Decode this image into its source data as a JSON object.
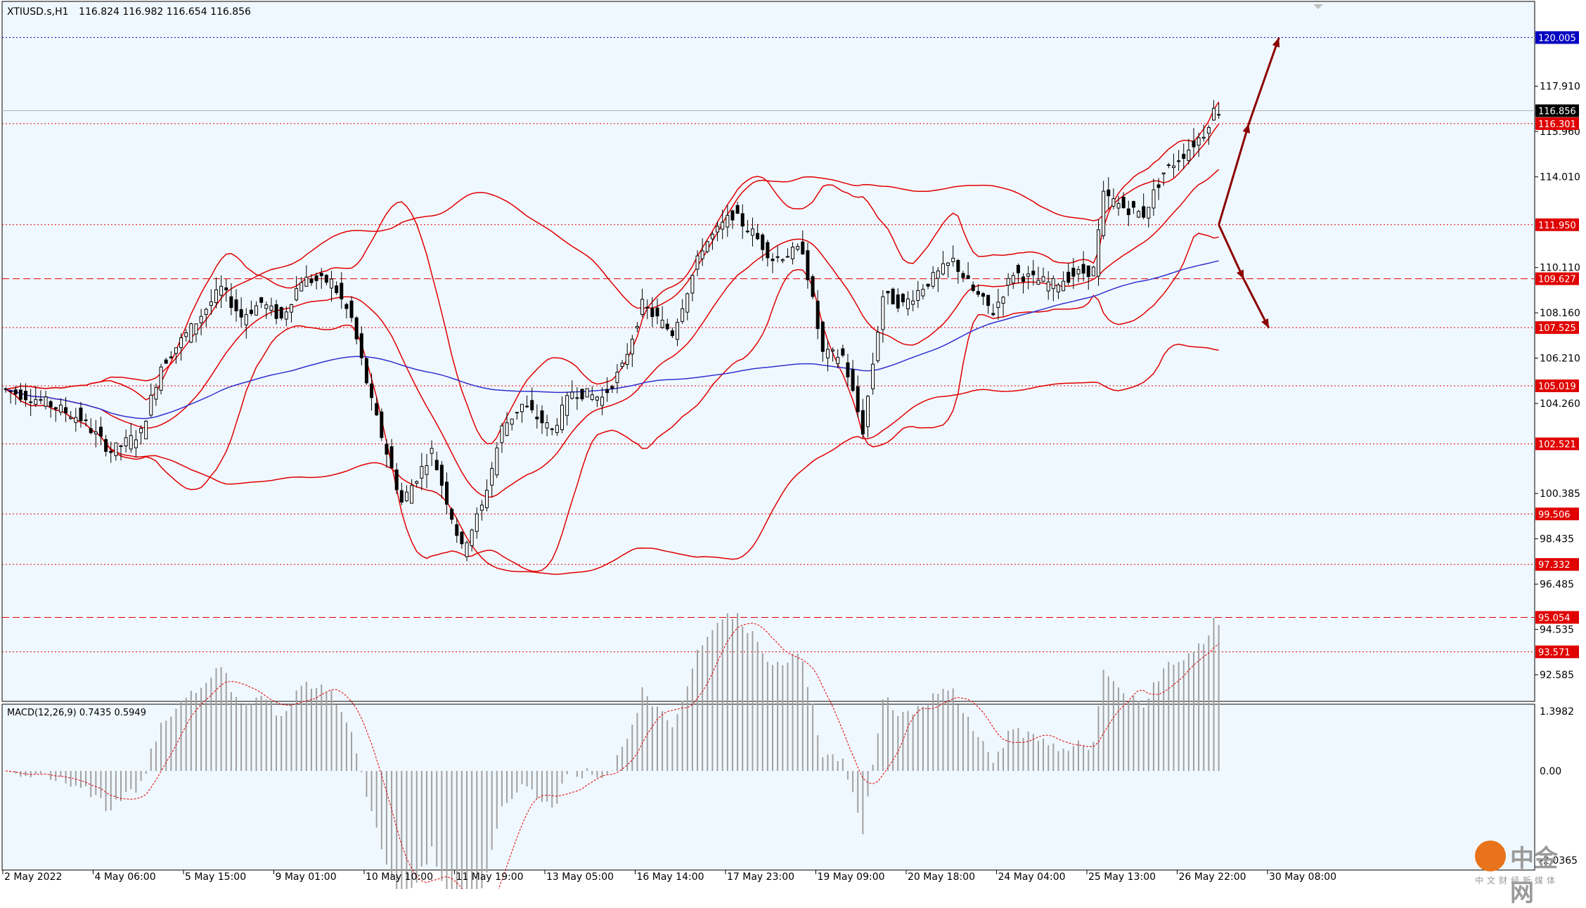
{
  "header": {
    "symbol": "XTIUSD.s,H1",
    "ohlc": "116.824 116.982 116.654 116.856"
  },
  "indicator": {
    "label": "MACD(12,26,9) 0.7435 0.5949",
    "scale_labels": [
      "1.3982",
      "0.00",
      "-2.0365"
    ]
  },
  "watermark": {
    "text": "中金网",
    "subtitle": "中文财经新媒体"
  },
  "colors": {
    "background": "#f0f8ff",
    "candle": "#000000",
    "bollinger": "#e00000",
    "ma": "#3030d0",
    "level": "#e00000",
    "blue_level": "#0000c0",
    "arrow": "#8b0000",
    "macd_hist": "#a0a0a0",
    "macd_signal": "#e00000"
  },
  "chart_data": {
    "type": "line",
    "title": "XTIUSD.s,H1",
    "xlabel": "",
    "ylabel": "",
    "ylim": [
      91.5,
      121.5
    ],
    "y_ticks": [
      "117.910",
      "115.960",
      "114.010",
      "110.110",
      "108.160",
      "106.210",
      "104.260",
      "100.385",
      "98.435",
      "96.485",
      "94.535",
      "92.585"
    ],
    "x_ticks": [
      "2 May 2022",
      "4 May 06:00",
      "5 May 15:00",
      "9 May 01:00",
      "10 May 10:00",
      "11 May 19:00",
      "13 May 05:00",
      "16 May 14:00",
      "17 May 23:00",
      "19 May 09:00",
      "20 May 18:00",
      "24 May 04:00",
      "25 May 13:00",
      "26 May 22:00",
      "30 May 08:00"
    ],
    "current_price": {
      "value": 116.856,
      "label": "116.856"
    },
    "levels": [
      {
        "value": 120.005,
        "label": "120.005",
        "style": "dotted",
        "color": "blue"
      },
      {
        "value": 116.301,
        "label": "116.301",
        "style": "dotted",
        "color": "red"
      },
      {
        "value": 111.95,
        "label": "111.950",
        "style": "dotted",
        "color": "red"
      },
      {
        "value": 109.627,
        "label": "109.627",
        "style": "dashed",
        "color": "red"
      },
      {
        "value": 107.525,
        "label": "107.525",
        "style": "dotted",
        "color": "red"
      },
      {
        "value": 105.019,
        "label": "105.019",
        "style": "dotted",
        "color": "red"
      },
      {
        "value": 102.521,
        "label": "102.521",
        "style": "dotted",
        "color": "red"
      },
      {
        "value": 99.506,
        "label": "99.506",
        "style": "dotted",
        "color": "red"
      },
      {
        "value": 97.332,
        "label": "97.332",
        "style": "dotted",
        "color": "red"
      },
      {
        "value": 95.054,
        "label": "95.054",
        "style": "dashed",
        "color": "red"
      },
      {
        "value": 93.571,
        "label": "93.571",
        "style": "dotted",
        "color": "red"
      }
    ],
    "price_path": [
      [
        0,
        104.9
      ],
      [
        4,
        104.4
      ],
      [
        8,
        103.6
      ],
      [
        11,
        102.2
      ],
      [
        14,
        103.0
      ],
      [
        16,
        105.9
      ],
      [
        19,
        107.5
      ],
      [
        22,
        109.2
      ],
      [
        24,
        108.0
      ],
      [
        26,
        108.6
      ],
      [
        28,
        107.9
      ],
      [
        30,
        109.6
      ],
      [
        33,
        109.5
      ],
      [
        35,
        107.9
      ],
      [
        37,
        104.3
      ],
      [
        40,
        100.0
      ],
      [
        43,
        102.2
      ],
      [
        46,
        98.0
      ],
      [
        48,
        99.8
      ],
      [
        50,
        103.2
      ],
      [
        52,
        104.2
      ],
      [
        55,
        103.1
      ],
      [
        57,
        104.8
      ],
      [
        60,
        104.5
      ],
      [
        62,
        105.8
      ],
      [
        64,
        108.5
      ],
      [
        67,
        107.3
      ],
      [
        70,
        111.0
      ],
      [
        73,
        112.4
      ],
      [
        75,
        111.6
      ],
      [
        77,
        110.5
      ],
      [
        80,
        110.9
      ],
      [
        82,
        106.4
      ],
      [
        84,
        106.3
      ],
      [
        86,
        103.1
      ],
      [
        88,
        108.9
      ],
      [
        90,
        108.5
      ],
      [
        92,
        109.3
      ],
      [
        95,
        110.4
      ],
      [
        97,
        109.1
      ],
      [
        99,
        108.2
      ],
      [
        101,
        109.9
      ],
      [
        103,
        109.6
      ],
      [
        105,
        109.4
      ],
      [
        107,
        109.8
      ],
      [
        109,
        110.0
      ],
      [
        110,
        113.2
      ],
      [
        112,
        112.7
      ],
      [
        114,
        112.4
      ],
      [
        116,
        114.2
      ],
      [
        118,
        115.0
      ],
      [
        120,
        115.9
      ],
      [
        121,
        116.856
      ]
    ],
    "resistance_path": [
      {
        "x": 121,
        "y": 111.95
      },
      {
        "x": 124,
        "y": 116.3
      },
      {
        "x": 127,
        "y": 120.0
      }
    ],
    "support_path": [
      {
        "x": 121,
        "y": 111.95
      },
      {
        "x": 123.5,
        "y": 109.6
      },
      {
        "x": 126,
        "y": 107.5
      }
    ]
  }
}
